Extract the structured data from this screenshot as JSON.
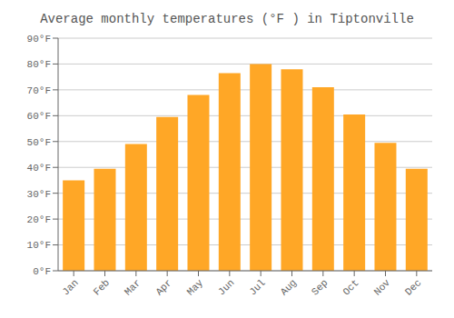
{
  "chart_data": {
    "type": "bar",
    "title": "Average monthly temperatures (°F ) in Tiptonville",
    "categories": [
      "Jan",
      "Feb",
      "Mar",
      "Apr",
      "May",
      "Jun",
      "Jul",
      "Aug",
      "Sep",
      "Oct",
      "Nov",
      "Dec"
    ],
    "values": [
      35,
      39.5,
      49,
      59.5,
      68,
      76.5,
      80,
      78,
      71,
      60.5,
      49.5,
      39.5
    ],
    "color": "#FFA726",
    "ylim": [
      0,
      90
    ],
    "yticks": [
      {
        "value": 0,
        "label": "0°F"
      },
      {
        "value": 10,
        "label": "10°F"
      },
      {
        "value": 20,
        "label": "20°F"
      },
      {
        "value": 30,
        "label": "30°F"
      },
      {
        "value": 40,
        "label": "40°F"
      },
      {
        "value": 50,
        "label": "50°F"
      },
      {
        "value": 60,
        "label": "60°F"
      },
      {
        "value": 70,
        "label": "70°F"
      },
      {
        "value": 80,
        "label": "80°F"
      },
      {
        "value": 90,
        "label": "90°F"
      }
    ],
    "grid": true
  }
}
